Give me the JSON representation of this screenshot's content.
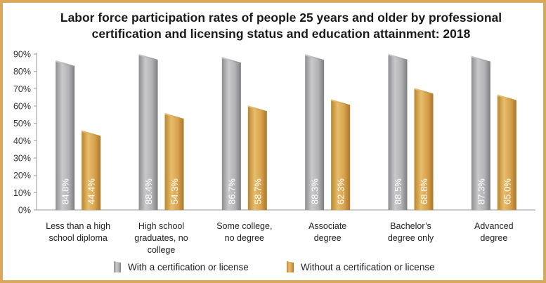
{
  "chart_data": {
    "type": "bar",
    "title_lines": [
      "Labor force participation rates of people 25 years and older by professional",
      "certification and licensing status and education attainment: 2018"
    ],
    "categories": [
      [
        "Less than a high",
        "school diploma"
      ],
      [
        "High school",
        "graduates, no",
        "college"
      ],
      [
        "Some college,",
        "no degree"
      ],
      [
        "Associate",
        "degree"
      ],
      [
        "Bachelor’s",
        "degree only"
      ],
      [
        "Advanced",
        "degree"
      ]
    ],
    "series": [
      {
        "name": "With a certification or license",
        "color": "#a8a8ab",
        "values": [
          84.8,
          88.4,
          86.7,
          88.3,
          88.5,
          87.3
        ],
        "labels": [
          "84.8%",
          "88.4%",
          "86.7%",
          "88.3%",
          "88.5%",
          "87.3%"
        ]
      },
      {
        "name": "Without a certification or license",
        "color": "#d9a44e",
        "values": [
          44.4,
          54.3,
          58.7,
          62.3,
          68.8,
          65.0
        ],
        "labels": [
          "44.4%",
          "54.3%",
          "58.7%",
          "62.3%",
          "68.8%",
          "65.0%"
        ]
      }
    ],
    "ylim": [
      0,
      90
    ],
    "yticks": [
      "0%",
      "10%",
      "20%",
      "30%",
      "40%",
      "50%",
      "60%",
      "70%",
      "80%",
      "90%"
    ],
    "grid": false,
    "legend_position": "bottom"
  }
}
